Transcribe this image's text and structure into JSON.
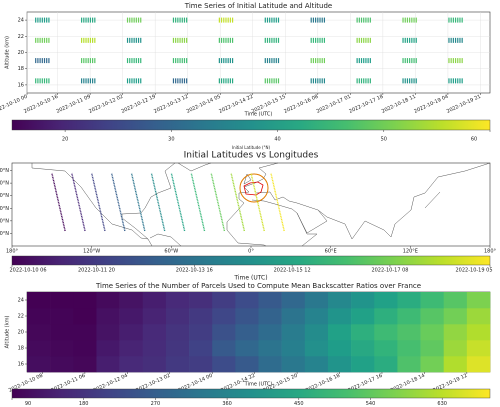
{
  "chart_data": [
    {
      "type": "scatter",
      "title": "Time Series of Initial Latitude and Altitude",
      "x_label": "Time (UTC)",
      "y_label": "Altitude (km)",
      "grid": true,
      "xlim": [
        "2022-10-10 00",
        "2022-10-20 02"
      ],
      "xticks": [
        "2022-10-10 00",
        "2022-10-10 16",
        "2022-10-11 09",
        "2022-10-12 02",
        "2022-10-12 19",
        "2022-10-13 12",
        "2022-10-14 05",
        "2022-10-14 22",
        "2022-10-15 15",
        "2022-10-16 08",
        "2022-10-17 01",
        "2022-10-17 18",
        "2022-10-18 11",
        "2022-10-19 04",
        "2022-10-19 21"
      ],
      "ylim": [
        15,
        25
      ],
      "yticks": [
        16,
        18,
        20,
        22,
        24
      ],
      "x": [
        "2022-10-10 08",
        "2022-10-10 08",
        "2022-10-10 08",
        "2022-10-10 08",
        "2022-10-11 08",
        "2022-10-11 08",
        "2022-10-11 08",
        "2022-10-11 08",
        "2022-10-12 08",
        "2022-10-12 08",
        "2022-10-12 08",
        "2022-10-12 08",
        "2022-10-13 08",
        "2022-10-13 08",
        "2022-10-13 08",
        "2022-10-13 08",
        "2022-10-14 08",
        "2022-10-14 08",
        "2022-10-14 08",
        "2022-10-14 08",
        "2022-10-15 08",
        "2022-10-15 08",
        "2022-10-15 08",
        "2022-10-15 08",
        "2022-10-16 08",
        "2022-10-16 08",
        "2022-10-16 08",
        "2022-10-16 08",
        "2022-10-17 08",
        "2022-10-17 08",
        "2022-10-17 08",
        "2022-10-17 08",
        "2022-10-18 08",
        "2022-10-18 08",
        "2022-10-18 08",
        "2022-10-18 08",
        "2022-10-19 08",
        "2022-10-19 08",
        "2022-10-19 08",
        "2022-10-19 08"
      ],
      "y": [
        16.5,
        19,
        21.5,
        24,
        16.5,
        19,
        21.5,
        24,
        16.5,
        19,
        21.5,
        24,
        16.5,
        19,
        21.5,
        24,
        16.5,
        19,
        21.5,
        24,
        16.5,
        19,
        21.5,
        24,
        16.5,
        19,
        21.5,
        24,
        16.5,
        19,
        21.5,
        24,
        16.5,
        19,
        21.5,
        24,
        16.5,
        19,
        21.5,
        24
      ],
      "c": [
        45,
        30,
        50,
        40,
        35,
        48,
        55,
        42,
        40,
        45,
        38,
        50,
        30,
        46,
        52,
        44,
        42,
        38,
        47,
        56,
        48,
        35,
        44,
        40,
        36,
        50,
        45,
        33,
        44,
        40,
        52,
        47,
        38,
        46,
        41,
        50,
        40,
        52,
        36,
        45
      ],
      "colorbar": {
        "label": "Initial Latitude (°N)",
        "lim": [
          15,
          60
        ],
        "ticks": [
          20,
          30,
          40,
          50,
          60
        ]
      }
    },
    {
      "type": "map",
      "title": "Initial Latitudes vs Longitudes",
      "xlim": [
        -180,
        180
      ],
      "xticks": [
        {
          "value": -180,
          "label": "180°"
        },
        {
          "value": -120,
          "label": "120°W"
        },
        {
          "value": -60,
          "label": "60°W"
        },
        {
          "value": 0,
          "label": "0°"
        },
        {
          "value": 60,
          "label": "60°E"
        },
        {
          "value": 120,
          "label": "120°E"
        },
        {
          "value": 180,
          "label": "180°"
        }
      ],
      "ylim": [
        0,
        66
      ],
      "yticks": [
        {
          "value": 10,
          "label": "10°N"
        },
        {
          "value": 20,
          "label": "20°N"
        },
        {
          "value": 30,
          "label": "30°N"
        },
        {
          "value": 40,
          "label": "40°N"
        },
        {
          "value": 50,
          "label": "50°N"
        },
        {
          "value": 60,
          "label": "60°N"
        }
      ],
      "tracks": [
        {
          "lon": [
            -140,
            -150
          ],
          "lat": [
            12,
            58
          ],
          "time": "2022-10-10 10"
        },
        {
          "lon": [
            -125,
            -135
          ],
          "lat": [
            12,
            58
          ],
          "time": "2022-10-11 06"
        },
        {
          "lon": [
            -110,
            -120
          ],
          "lat": [
            12,
            58
          ],
          "time": "2022-10-12 02"
        },
        {
          "lon": [
            -95,
            -105
          ],
          "lat": [
            12,
            58
          ],
          "time": "2022-10-12 22"
        },
        {
          "lon": [
            -80,
            -90
          ],
          "lat": [
            12,
            58
          ],
          "time": "2022-10-13 18"
        },
        {
          "lon": [
            -65,
            -75
          ],
          "lat": [
            12,
            58
          ],
          "time": "2022-10-14 14"
        },
        {
          "lon": [
            -50,
            -60
          ],
          "lat": [
            12,
            58
          ],
          "time": "2022-10-15 10"
        },
        {
          "lon": [
            -35,
            -45
          ],
          "lat": [
            12,
            58
          ],
          "time": "2022-10-16 06"
        },
        {
          "lon": [
            -20,
            -30
          ],
          "lat": [
            12,
            58
          ],
          "time": "2022-10-17 02"
        },
        {
          "lon": [
            -5,
            -15
          ],
          "lat": [
            12,
            58
          ],
          "time": "2022-10-17 22"
        },
        {
          "lon": [
            10,
            0
          ],
          "lat": [
            12,
            58
          ],
          "time": "2022-10-18 14"
        },
        {
          "lon": [
            25,
            15
          ],
          "lat": [
            12,
            58
          ],
          "time": "2022-10-19 02"
        }
      ],
      "colorbar": {
        "label": "Time (UTC)",
        "lim": [
          "2022-10-10 06",
          "2022-10-19 05"
        ],
        "ticks": [
          "2022-10-10 06",
          "2022-10-11 20",
          "2022-10-13 16",
          "2022-10-15 12",
          "2022-10-17 08",
          "2022-10-19 05"
        ]
      }
    },
    {
      "type": "heatmap",
      "title": "Time Series of the Number of Parcels Used to Compute Mean Backscatter Ratios over France",
      "x_label": "Time (UTC)",
      "y_label": "Altitude (km)",
      "xlim": [
        "2022-10-10 00",
        "2022-10-20 00"
      ],
      "xticks": [
        "2022-10-10 08",
        "2022-10-11 06",
        "2022-10-12 04",
        "2022-10-13 02",
        "2022-10-14 00",
        "2022-10-14 22",
        "2022-10-15 20",
        "2022-10-16 18",
        "2022-10-17 16",
        "2022-10-18 14",
        "2022-10-19 12"
      ],
      "ylim": [
        15,
        25
      ],
      "yticks": [
        16,
        18,
        20,
        22,
        24
      ],
      "x": [
        "2022-10-10 00",
        "2022-10-10 12",
        "2022-10-11 00",
        "2022-10-11 12",
        "2022-10-12 00",
        "2022-10-12 12",
        "2022-10-13 00",
        "2022-10-13 12",
        "2022-10-14 00",
        "2022-10-14 12",
        "2022-10-15 00",
        "2022-10-15 12",
        "2022-10-16 00",
        "2022-10-16 12",
        "2022-10-17 00",
        "2022-10-17 12",
        "2022-10-18 00",
        "2022-10-18 12",
        "2022-10-19 00",
        "2022-10-19 12"
      ],
      "y": [
        15,
        17,
        19,
        21,
        23
      ],
      "z": [
        [
          110,
          105,
          100,
          140,
          160,
          170,
          190,
          200,
          230,
          260,
          300,
          330,
          360,
          400,
          430,
          460,
          520,
          560,
          620,
          660
        ],
        [
          105,
          100,
          95,
          130,
          150,
          165,
          185,
          210,
          260,
          290,
          320,
          350,
          390,
          420,
          450,
          480,
          510,
          540,
          600,
          640
        ],
        [
          100,
          95,
          95,
          120,
          140,
          160,
          180,
          200,
          240,
          270,
          300,
          340,
          380,
          430,
          470,
          500,
          520,
          550,
          590,
          620
        ],
        [
          95,
          95,
          90,
          115,
          130,
          150,
          170,
          190,
          220,
          250,
          280,
          320,
          360,
          400,
          430,
          470,
          500,
          530,
          560,
          600
        ],
        [
          90,
          90,
          90,
          105,
          120,
          140,
          160,
          170,
          200,
          230,
          260,
          290,
          330,
          370,
          400,
          430,
          460,
          500,
          530,
          570
        ]
      ],
      "colorbar": {
        "lim": [
          90,
          690
        ],
        "ticks": [
          90,
          180,
          270,
          360,
          450,
          540,
          630
        ]
      }
    }
  ]
}
